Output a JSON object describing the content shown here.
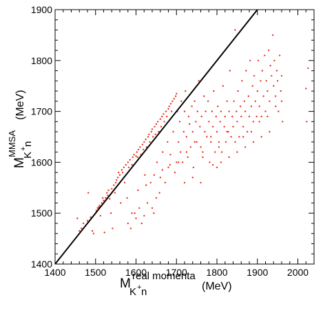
{
  "chart_data": {
    "type": "scatter",
    "xlabel": {
      "main": "M",
      "sub": "K",
      "sub_sup": "+",
      "sub_after": " n",
      "sup": "real momenta",
      "unit": "(MeV)"
    },
    "ylabel": {
      "main": "M",
      "sub": "K",
      "sub_sup": "+",
      "sub_after": " n",
      "sup": "MMSA",
      "unit": "(MeV)"
    },
    "xlim": [
      1400,
      2040
    ],
    "ylim": [
      1400,
      1900
    ],
    "x_ticks": [
      1400,
      1500,
      1600,
      1700,
      1800,
      1900,
      2000
    ],
    "y_ticks": [
      1400,
      1500,
      1600,
      1700,
      1800,
      1900
    ],
    "x_tick_labels": [
      "1400",
      "1500",
      "1600",
      "1700",
      "1800",
      "1900",
      "2000"
    ],
    "y_tick_labels": [
      "1400",
      "1500",
      "1600",
      "1700",
      "1800",
      "1900"
    ],
    "grid": false,
    "marker_color": "#e8301e",
    "line": {
      "type": "diagonal",
      "x": [
        1400,
        1900
      ],
      "y": [
        1400,
        1900
      ],
      "color": "#000000"
    },
    "points": [
      [
        1455,
        1490
      ],
      [
        1460,
        1465
      ],
      [
        1465,
        1470
      ],
      [
        1470,
        1480
      ],
      [
        1475,
        1475
      ],
      [
        1480,
        1485
      ],
      [
        1482,
        1540
      ],
      [
        1488,
        1492
      ],
      [
        1492,
        1465
      ],
      [
        1495,
        1460
      ],
      [
        1500,
        1500
      ],
      [
        1502,
        1505
      ],
      [
        1505,
        1510
      ],
      [
        1508,
        1512
      ],
      [
        1510,
        1515
      ],
      [
        1512,
        1495
      ],
      [
        1515,
        1520
      ],
      [
        1518,
        1530
      ],
      [
        1520,
        1525
      ],
      [
        1522,
        1462
      ],
      [
        1525,
        1530
      ],
      [
        1528,
        1540
      ],
      [
        1530,
        1535
      ],
      [
        1532,
        1545
      ],
      [
        1535,
        1528
      ],
      [
        1538,
        1500
      ],
      [
        1540,
        1548
      ],
      [
        1542,
        1470
      ],
      [
        1545,
        1555
      ],
      [
        1548,
        1540
      ],
      [
        1550,
        1560
      ],
      [
        1552,
        1565
      ],
      [
        1555,
        1570
      ],
      [
        1557,
        1580
      ],
      [
        1560,
        1575
      ],
      [
        1562,
        1520
      ],
      [
        1565,
        1585
      ],
      [
        1567,
        1580
      ],
      [
        1570,
        1590
      ],
      [
        1572,
        1560
      ],
      [
        1575,
        1595
      ],
      [
        1578,
        1530
      ],
      [
        1580,
        1600
      ],
      [
        1582,
        1590
      ],
      [
        1585,
        1605
      ],
      [
        1587,
        1470
      ],
      [
        1590,
        1595
      ],
      [
        1592,
        1610
      ],
      [
        1595,
        1615
      ],
      [
        1597,
        1500
      ],
      [
        1600,
        1612
      ],
      [
        1602,
        1620
      ],
      [
        1604,
        1610
      ],
      [
        1606,
        1625
      ],
      [
        1608,
        1510
      ],
      [
        1610,
        1630
      ],
      [
        1612,
        1615
      ],
      [
        1614,
        1480
      ],
      [
        1616,
        1635
      ],
      [
        1618,
        1625
      ],
      [
        1620,
        1640
      ],
      [
        1622,
        1575
      ],
      [
        1624,
        1645
      ],
      [
        1626,
        1630
      ],
      [
        1628,
        1520
      ],
      [
        1630,
        1650
      ],
      [
        1632,
        1655
      ],
      [
        1634,
        1640
      ],
      [
        1636,
        1560
      ],
      [
        1638,
        1660
      ],
      [
        1640,
        1665
      ],
      [
        1642,
        1650
      ],
      [
        1644,
        1500
      ],
      [
        1646,
        1670
      ],
      [
        1648,
        1655
      ],
      [
        1650,
        1675
      ],
      [
        1652,
        1600
      ],
      [
        1654,
        1680
      ],
      [
        1656,
        1660
      ],
      [
        1658,
        1540
      ],
      [
        1660,
        1685
      ],
      [
        1662,
        1670
      ],
      [
        1664,
        1690
      ],
      [
        1666,
        1620
      ],
      [
        1668,
        1695
      ],
      [
        1670,
        1680
      ],
      [
        1672,
        1560
      ],
      [
        1674,
        1700
      ],
      [
        1676,
        1690
      ],
      [
        1678,
        1640
      ],
      [
        1680,
        1705
      ],
      [
        1682,
        1710
      ],
      [
        1684,
        1595
      ],
      [
        1686,
        1715
      ],
      [
        1688,
        1700
      ],
      [
        1690,
        1720
      ],
      [
        1692,
        1660
      ],
      [
        1694,
        1725
      ],
      [
        1696,
        1580
      ],
      [
        1698,
        1730
      ],
      [
        1700,
        1735
      ],
      [
        1702,
        1700
      ],
      [
        1705,
        1640
      ],
      [
        1708,
        1680
      ],
      [
        1710,
        1620
      ],
      [
        1712,
        1720
      ],
      [
        1715,
        1600
      ],
      [
        1718,
        1660
      ],
      [
        1720,
        1700
      ],
      [
        1722,
        1740
      ],
      [
        1725,
        1650
      ],
      [
        1728,
        1610
      ],
      [
        1730,
        1690
      ],
      [
        1732,
        1675
      ],
      [
        1735,
        1630
      ],
      [
        1738,
        1710
      ],
      [
        1740,
        1660
      ],
      [
        1742,
        1590
      ],
      [
        1745,
        1720
      ],
      [
        1748,
        1680
      ],
      [
        1750,
        1640
      ],
      [
        1752,
        1700
      ],
      [
        1755,
        1760
      ],
      [
        1758,
        1670
      ],
      [
        1760,
        1630
      ],
      [
        1762,
        1690
      ],
      [
        1765,
        1610
      ],
      [
        1768,
        1730
      ],
      [
        1770,
        1660
      ],
      [
        1772,
        1700
      ],
      [
        1775,
        1650
      ],
      [
        1778,
        1720
      ],
      [
        1780,
        1680
      ],
      [
        1782,
        1600
      ],
      [
        1785,
        1640
      ],
      [
        1788,
        1700
      ],
      [
        1790,
        1670
      ],
      [
        1792,
        1740
      ],
      [
        1795,
        1620
      ],
      [
        1798,
        1690
      ],
      [
        1800,
        1660
      ],
      [
        1802,
        1710
      ],
      [
        1805,
        1640
      ],
      [
        1808,
        1680
      ],
      [
        1810,
        1700
      ],
      [
        1812,
        1620
      ],
      [
        1815,
        1750
      ],
      [
        1818,
        1670
      ],
      [
        1820,
        1690
      ],
      [
        1822,
        1640
      ],
      [
        1825,
        1720
      ],
      [
        1828,
        1660
      ],
      [
        1830,
        1700
      ],
      [
        1832,
        1780
      ],
      [
        1835,
        1650
      ],
      [
        1838,
        1690
      ],
      [
        1840,
        1670
      ],
      [
        1842,
        1720
      ],
      [
        1845,
        1860
      ],
      [
        1848,
        1700
      ],
      [
        1850,
        1680
      ],
      [
        1852,
        1740
      ],
      [
        1855,
        1650
      ],
      [
        1858,
        1710
      ],
      [
        1860,
        1690
      ],
      [
        1862,
        1760
      ],
      [
        1865,
        1670
      ],
      [
        1868,
        1720
      ],
      [
        1870,
        1700
      ],
      [
        1872,
        1780
      ],
      [
        1875,
        1660
      ],
      [
        1878,
        1730
      ],
      [
        1880,
        1690
      ],
      [
        1882,
        1800
      ],
      [
        1885,
        1710
      ],
      [
        1888,
        1750
      ],
      [
        1890,
        1680
      ],
      [
        1892,
        1770
      ],
      [
        1895,
        1720
      ],
      [
        1898,
        1690
      ],
      [
        1900,
        1740
      ],
      [
        1902,
        1800
      ],
      [
        1905,
        1710
      ],
      [
        1908,
        1760
      ],
      [
        1910,
        1690
      ],
      [
        1912,
        1780
      ],
      [
        1915,
        1730
      ],
      [
        1918,
        1810
      ],
      [
        1920,
        1700
      ],
      [
        1922,
        1760
      ],
      [
        1925,
        1740
      ],
      [
        1928,
        1820
      ],
      [
        1930,
        1720
      ],
      [
        1932,
        1790
      ],
      [
        1935,
        1770
      ],
      [
        1938,
        1850
      ],
      [
        1940,
        1750
      ],
      [
        1942,
        1800
      ],
      [
        1945,
        1730
      ],
      [
        1948,
        1780
      ],
      [
        1950,
        1760
      ],
      [
        1952,
        1700
      ],
      [
        1955,
        1810
      ],
      [
        1958,
        1740
      ],
      [
        1960,
        1770
      ],
      [
        1962,
        1680
      ],
      [
        2020,
        1745
      ],
      [
        2025,
        1785
      ],
      [
        2022,
        1680
      ],
      [
        1800,
        1590
      ],
      [
        1790,
        1595
      ],
      [
        1760,
        1560
      ],
      [
        1740,
        1570
      ],
      [
        1720,
        1560
      ],
      [
        1700,
        1600
      ],
      [
        1680,
        1590
      ],
      [
        1660,
        1570
      ],
      [
        1650,
        1530
      ],
      [
        1640,
        1510
      ],
      [
        1620,
        1495
      ],
      [
        1600,
        1490
      ],
      [
        1590,
        1500
      ],
      [
        1580,
        1480
      ],
      [
        1605,
        1545
      ],
      [
        1625,
        1555
      ],
      [
        1645,
        1575
      ],
      [
        1665,
        1585
      ],
      [
        1685,
        1615
      ],
      [
        1705,
        1600
      ],
      [
        1725,
        1620
      ],
      [
        1745,
        1640
      ],
      [
        1765,
        1620
      ],
      [
        1785,
        1650
      ],
      [
        1805,
        1630
      ],
      [
        1825,
        1660
      ],
      [
        1845,
        1640
      ],
      [
        1865,
        1650
      ],
      [
        1885,
        1660
      ],
      [
        1905,
        1680
      ],
      [
        1925,
        1690
      ],
      [
        1945,
        1710
      ],
      [
        1960,
        1720
      ],
      [
        1930,
        1660
      ],
      [
        1910,
        1650
      ],
      [
        1890,
        1640
      ],
      [
        1870,
        1630
      ],
      [
        1850,
        1620
      ],
      [
        1830,
        1610
      ],
      [
        1810,
        1600
      ]
    ]
  }
}
